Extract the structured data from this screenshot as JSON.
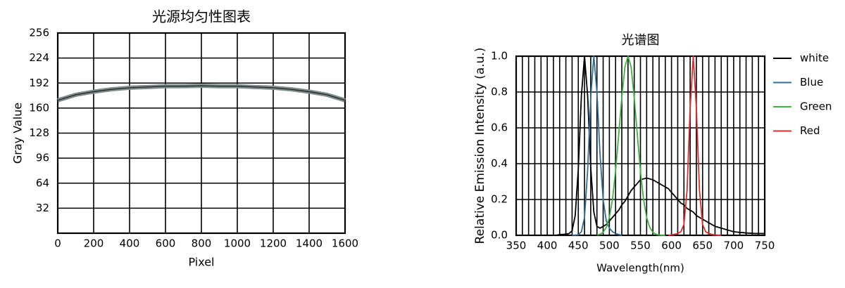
{
  "chart_data": [
    {
      "type": "line",
      "title": "光源均匀性图表",
      "xlabel": "Pixel",
      "ylabel": "Gray Value",
      "x": [
        0,
        100,
        200,
        300,
        400,
        500,
        600,
        700,
        800,
        900,
        1000,
        1100,
        1200,
        1300,
        1400,
        1500,
        1600
      ],
      "values": [
        170,
        177,
        181,
        184,
        186,
        187,
        188,
        188,
        188.5,
        188,
        188,
        187,
        186,
        184,
        181,
        177,
        170
      ],
      "color": "#7d8c8c",
      "xlim": [
        0,
        1600
      ],
      "xticks": [
        0,
        200,
        400,
        600,
        800,
        1000,
        1200,
        1400,
        1600
      ],
      "ylim": [
        0,
        256
      ],
      "yticks": [
        32,
        64,
        96,
        128,
        160,
        192,
        224,
        256
      ],
      "grid": true
    },
    {
      "type": "line",
      "title": "光谱图",
      "xlabel": "Wavelength(nm)",
      "ylabel": "Relative Emission Intensity (a.u.)",
      "x": [
        400,
        405,
        410,
        415,
        420,
        425,
        430,
        435,
        440,
        445,
        450,
        455,
        460,
        465,
        470,
        475,
        480,
        485,
        490,
        495,
        500,
        505,
        510,
        515,
        520,
        525,
        530,
        535,
        540,
        545,
        550,
        555,
        560,
        565,
        570,
        575,
        580,
        585,
        590,
        595,
        600,
        605,
        610,
        615,
        620,
        625,
        630,
        635,
        640,
        645,
        650,
        655,
        660,
        665,
        670,
        675,
        680,
        685,
        690,
        695,
        700,
        705,
        710,
        715,
        720,
        725,
        730,
        735,
        740,
        745,
        750
      ],
      "series": [
        {
          "name": "white",
          "color": "#000000",
          "values": [
            0,
            0,
            0,
            0,
            0.005,
            0.005,
            0.007,
            0.01,
            0.025,
            0.11,
            0.37,
            0.78,
            1,
            0.78,
            0.38,
            0.13,
            0.05,
            0.04,
            0.05,
            0.06,
            0.08,
            0.1,
            0.12,
            0.14,
            0.17,
            0.19,
            0.22,
            0.25,
            0.27,
            0.29,
            0.31,
            0.315,
            0.32,
            0.315,
            0.31,
            0.3,
            0.29,
            0.28,
            0.27,
            0.26,
            0.24,
            0.22,
            0.2,
            0.18,
            0.17,
            0.15,
            0.14,
            0.13,
            0.11,
            0.1,
            0.09,
            0.08,
            0.07,
            0.06,
            0.05,
            0.045,
            0.04,
            0.035,
            0.03,
            0.025,
            0.02,
            0.018,
            0.016,
            0.015,
            0.013,
            0.012,
            0.011,
            0.01,
            0.01,
            0.01,
            0.01
          ]
        },
        {
          "name": "Blue",
          "color": "#2f6f9a",
          "values": [
            null,
            null,
            null,
            null,
            null,
            null,
            null,
            null,
            0,
            0.001,
            0.003,
            0.02,
            0.1,
            0.36,
            0.77,
            1,
            0.8,
            0.45,
            0.2,
            0.08,
            0.04,
            0.02,
            0.01,
            0.005,
            0,
            null,
            null,
            null,
            null,
            null,
            null,
            null,
            null,
            null,
            null,
            null,
            null,
            null,
            null,
            null,
            null,
            null,
            null,
            null,
            null,
            null,
            null,
            null,
            null,
            null,
            null,
            null,
            null,
            null,
            null,
            null,
            null,
            null,
            null,
            null,
            null,
            null,
            null,
            null,
            null,
            null,
            null,
            null,
            null,
            null,
            null
          ]
        },
        {
          "name": "Green",
          "color": "#3bb53b",
          "values": [
            null,
            null,
            null,
            null,
            null,
            null,
            null,
            null,
            null,
            null,
            null,
            null,
            null,
            null,
            null,
            null,
            0.002,
            0.006,
            0.017,
            0.044,
            0.1,
            0.2,
            0.36,
            0.56,
            0.77,
            0.94,
            1,
            0.94,
            0.77,
            0.56,
            0.36,
            0.2,
            0.1,
            0.044,
            0.017,
            0.006,
            0.002,
            0,
            0,
            null,
            null,
            null,
            null,
            null,
            null,
            null,
            null,
            null,
            null,
            null,
            null,
            null,
            null,
            null,
            null,
            null,
            null,
            null,
            null,
            null,
            null,
            null,
            null,
            null,
            null,
            null,
            null,
            null,
            null,
            null,
            null
          ]
        },
        {
          "name": "Red",
          "color": "#e62a2a",
          "values": [
            null,
            null,
            null,
            null,
            null,
            null,
            null,
            null,
            null,
            null,
            null,
            null,
            null,
            null,
            null,
            null,
            null,
            null,
            null,
            null,
            null,
            null,
            null,
            null,
            null,
            null,
            null,
            null,
            null,
            null,
            null,
            null,
            null,
            null,
            null,
            null,
            null,
            null,
            null,
            0,
            0.003,
            0.006,
            0.01,
            0.02,
            0.06,
            0.25,
            0.71,
            1,
            0.71,
            0.25,
            0.06,
            0.02,
            0.01,
            0.005,
            0.002,
            0,
            0,
            null,
            null,
            null,
            null,
            null,
            null,
            null,
            null,
            null,
            null,
            null,
            null,
            null,
            null
          ]
        }
      ],
      "xlim": [
        350,
        750
      ],
      "xticks": [
        350,
        400,
        450,
        500,
        550,
        600,
        650,
        700,
        750
      ],
      "xgrid_lines": [
        350,
        360,
        370,
        380,
        390,
        400,
        410,
        420,
        430,
        440,
        450,
        460,
        470,
        480,
        490,
        500,
        510,
        520,
        530,
        540,
        550,
        560,
        570,
        580,
        590,
        600,
        610,
        620,
        630,
        640,
        650,
        660,
        670,
        680,
        690,
        700,
        710,
        720,
        730,
        740,
        750
      ],
      "ylim": [
        0,
        1
      ],
      "yticks": [
        {
          "value": 0,
          "label": "0.0"
        },
        0.2,
        0.4,
        0.6,
        0.8,
        {
          "value": 1,
          "label": "1.0"
        }
      ],
      "grid": true,
      "legend": "right"
    }
  ]
}
